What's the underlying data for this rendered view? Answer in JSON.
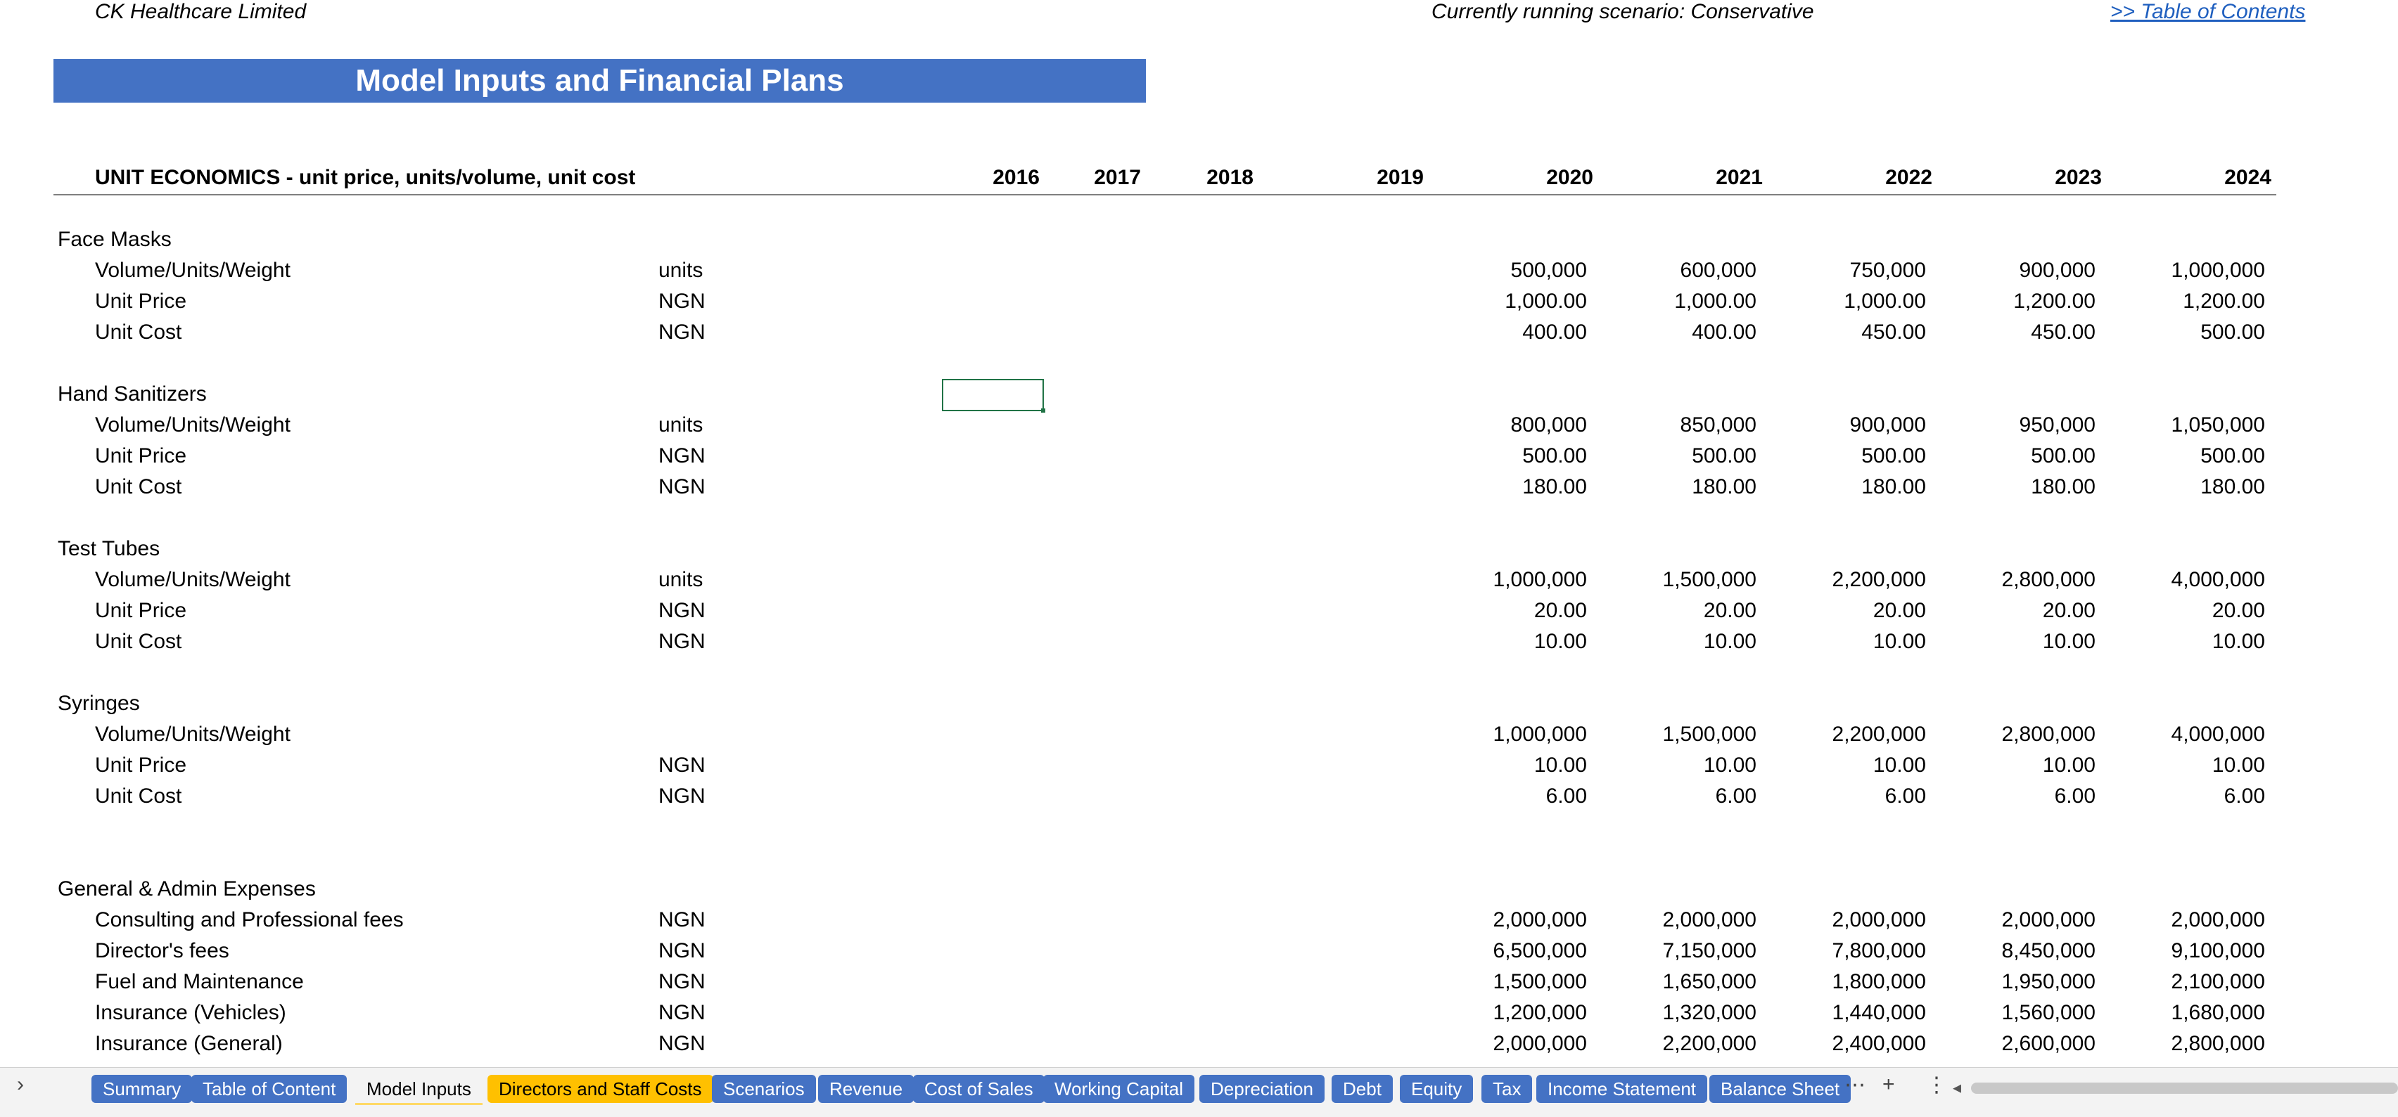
{
  "header": {
    "company": "CK Healthcare Limited",
    "scenario": "Currently running scenario: Conservative",
    "toc_link": ">> Table of Contents"
  },
  "banner": {
    "title": "Model Inputs and Financial Plans"
  },
  "table": {
    "heading": "UNIT ECONOMICS - unit price, units/volume, unit cost",
    "years": [
      "2016",
      "2017",
      "2018",
      "2019",
      "2020",
      "2021",
      "2022",
      "2023",
      "2024"
    ],
    "sections": [
      {
        "name": "Face Masks",
        "rows": [
          {
            "label": "Volume/Units/Weight",
            "unit": "units",
            "values": [
              "500,000",
              "600,000",
              "750,000",
              "900,000",
              "1,000,000"
            ]
          },
          {
            "label": "Unit Price",
            "unit": "NGN",
            "values": [
              "1,000.00",
              "1,000.00",
              "1,000.00",
              "1,200.00",
              "1,200.00"
            ]
          },
          {
            "label": "Unit Cost",
            "unit": "NGN",
            "values": [
              "400.00",
              "400.00",
              "450.00",
              "450.00",
              "500.00"
            ]
          }
        ]
      },
      {
        "name": "Hand Sanitizers",
        "rows": [
          {
            "label": "Volume/Units/Weight",
            "unit": "units",
            "values": [
              "800,000",
              "850,000",
              "900,000",
              "950,000",
              "1,050,000"
            ]
          },
          {
            "label": "Unit Price",
            "unit": "NGN",
            "values": [
              "500.00",
              "500.00",
              "500.00",
              "500.00",
              "500.00"
            ]
          },
          {
            "label": "Unit Cost",
            "unit": "NGN",
            "values": [
              "180.00",
              "180.00",
              "180.00",
              "180.00",
              "180.00"
            ]
          }
        ]
      },
      {
        "name": "Test Tubes",
        "rows": [
          {
            "label": "Volume/Units/Weight",
            "unit": "units",
            "values": [
              "1,000,000",
              "1,500,000",
              "2,200,000",
              "2,800,000",
              "4,000,000"
            ]
          },
          {
            "label": "Unit Price",
            "unit": "NGN",
            "values": [
              "20.00",
              "20.00",
              "20.00",
              "20.00",
              "20.00"
            ]
          },
          {
            "label": "Unit Cost",
            "unit": "NGN",
            "values": [
              "10.00",
              "10.00",
              "10.00",
              "10.00",
              "10.00"
            ]
          }
        ]
      },
      {
        "name": "Syringes",
        "rows": [
          {
            "label": "Volume/Units/Weight",
            "unit": "",
            "values": [
              "1,000,000",
              "1,500,000",
              "2,200,000",
              "2,800,000",
              "4,000,000"
            ]
          },
          {
            "label": "Unit Price",
            "unit": "NGN",
            "values": [
              "10.00",
              "10.00",
              "10.00",
              "10.00",
              "10.00"
            ]
          },
          {
            "label": "Unit Cost",
            "unit": "NGN",
            "values": [
              "6.00",
              "6.00",
              "6.00",
              "6.00",
              "6.00"
            ]
          }
        ]
      },
      {
        "name": "General & Admin Expenses",
        "rows": [
          {
            "label": "Consulting and Professional fees",
            "unit": "NGN",
            "values": [
              "2,000,000",
              "2,000,000",
              "2,000,000",
              "2,000,000",
              "2,000,000"
            ]
          },
          {
            "label": "Director's fees",
            "unit": "NGN",
            "values": [
              "6,500,000",
              "7,150,000",
              "7,800,000",
              "8,450,000",
              "9,100,000"
            ]
          },
          {
            "label": "Fuel and Maintenance",
            "unit": "NGN",
            "values": [
              "1,500,000",
              "1,650,000",
              "1,800,000",
              "1,950,000",
              "2,100,000"
            ]
          },
          {
            "label": "Insurance (Vehicles)",
            "unit": "NGN",
            "values": [
              "1,200,000",
              "1,320,000",
              "1,440,000",
              "1,560,000",
              "1,680,000"
            ]
          },
          {
            "label": "Insurance (General)",
            "unit": "NGN",
            "values": [
              "2,000,000",
              "2,200,000",
              "2,400,000",
              "2,600,000",
              "2,800,000"
            ]
          }
        ]
      }
    ]
  },
  "tabs": [
    "Summary",
    "Table of Content",
    "Model Inputs",
    "Directors and Staff Costs",
    "Scenarios",
    "Revenue",
    "Cost of Sales",
    "Working Capital",
    "Depreciation",
    "Debt",
    "Equity",
    "Tax",
    "Income Statement",
    "Balance Sheet"
  ],
  "active_tab": "Model Inputs",
  "yellow_tab": "Directors and Staff Costs",
  "icons": {
    "nav": "chevron-right-icon",
    "more": "ellipsis-icon",
    "add": "plus-icon",
    "options": "vertical-ellipsis-icon",
    "scroll_left": "triangle-left-icon"
  },
  "colors": {
    "banner": "#4472c4",
    "tab": "#4472c4",
    "yellow_tab": "#ffc000",
    "link": "#1f5fbf",
    "selection": "#217346"
  }
}
